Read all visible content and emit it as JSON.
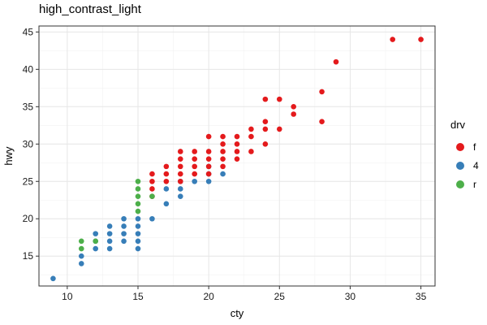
{
  "chart_data": {
    "type": "scatter",
    "title": "high_contrast_light",
    "xlabel": "cty",
    "ylabel": "hwy",
    "xlim": [
      8,
      36
    ],
    "ylim": [
      11,
      45.8
    ],
    "xticks": [
      "10",
      "15",
      "20",
      "25",
      "30",
      "35"
    ],
    "yticks": [
      "15",
      "20",
      "25",
      "30",
      "35",
      "40",
      "45"
    ],
    "grid": true,
    "legend": {
      "title": "drv",
      "placement": "right",
      "entries": [
        {
          "label": "f",
          "color": "#E41A1C"
        },
        {
          "label": "4",
          "color": "#377EB8"
        },
        {
          "label": "r",
          "color": "#4DAF4A"
        }
      ]
    },
    "series": [
      {
        "name": "4",
        "color": "#377EB8",
        "points": [
          [
            9,
            12
          ],
          [
            11,
            14
          ],
          [
            11,
            15
          ],
          [
            12,
            16
          ],
          [
            12,
            17
          ],
          [
            12,
            18
          ],
          [
            13,
            16
          ],
          [
            13,
            17
          ],
          [
            13,
            18
          ],
          [
            13,
            19
          ],
          [
            14,
            17
          ],
          [
            14,
            18
          ],
          [
            14,
            19
          ],
          [
            14,
            20
          ],
          [
            15,
            16
          ],
          [
            15,
            17
          ],
          [
            15,
            18
          ],
          [
            15,
            19
          ],
          [
            15,
            20
          ],
          [
            16,
            20
          ],
          [
            17,
            22
          ],
          [
            17,
            24
          ],
          [
            18,
            23
          ],
          [
            18,
            24
          ],
          [
            18,
            25
          ],
          [
            19,
            25
          ],
          [
            20,
            25
          ],
          [
            20,
            26
          ],
          [
            20,
            27
          ],
          [
            21,
            26
          ]
        ]
      },
      {
        "name": "f",
        "color": "#E41A1C",
        "points": [
          [
            16,
            23
          ],
          [
            16,
            24
          ],
          [
            16,
            25
          ],
          [
            16,
            26
          ],
          [
            17,
            25
          ],
          [
            17,
            26
          ],
          [
            17,
            27
          ],
          [
            18,
            25
          ],
          [
            18,
            26
          ],
          [
            18,
            27
          ],
          [
            18,
            28
          ],
          [
            18,
            29
          ],
          [
            19,
            26
          ],
          [
            19,
            27
          ],
          [
            19,
            28
          ],
          [
            19,
            29
          ],
          [
            20,
            26
          ],
          [
            20,
            27
          ],
          [
            20,
            28
          ],
          [
            20,
            29
          ],
          [
            20,
            31
          ],
          [
            21,
            27
          ],
          [
            21,
            28
          ],
          [
            21,
            29
          ],
          [
            21,
            30
          ],
          [
            21,
            31
          ],
          [
            22,
            28
          ],
          [
            22,
            29
          ],
          [
            22,
            30
          ],
          [
            22,
            31
          ],
          [
            23,
            29
          ],
          [
            23,
            31
          ],
          [
            23,
            32
          ],
          [
            24,
            30
          ],
          [
            24,
            32
          ],
          [
            24,
            33
          ],
          [
            24,
            36
          ],
          [
            25,
            32
          ],
          [
            25,
            36
          ],
          [
            26,
            34
          ],
          [
            26,
            35
          ],
          [
            28,
            33
          ],
          [
            28,
            37
          ],
          [
            29,
            41
          ],
          [
            33,
            44
          ],
          [
            35,
            44
          ]
        ]
      },
      {
        "name": "r",
        "color": "#4DAF4A",
        "points": [
          [
            11,
            16
          ],
          [
            11,
            17
          ],
          [
            12,
            17
          ],
          [
            15,
            21
          ],
          [
            15,
            22
          ],
          [
            15,
            23
          ],
          [
            15,
            24
          ],
          [
            15,
            25
          ],
          [
            16,
            23
          ]
        ]
      }
    ]
  }
}
